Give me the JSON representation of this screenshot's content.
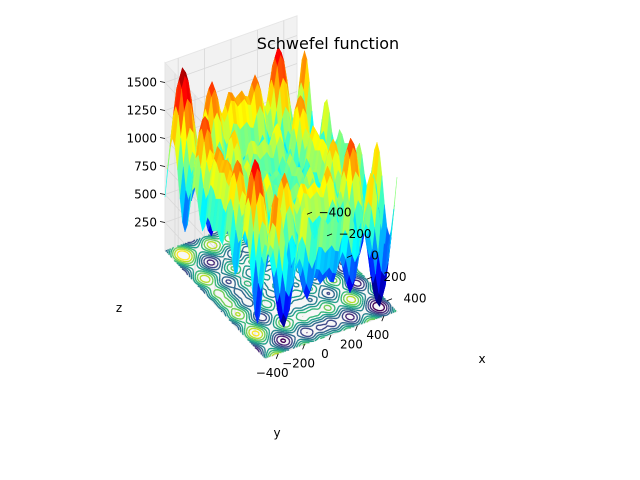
{
  "chart_data": {
    "type": "surface3d",
    "title": "Schwefel function",
    "function": "z = 418.9829*2 - x*sin(sqrt(|x|)) - y*sin(sqrt(|y|))",
    "colormap": "jet",
    "contour_projection": "bottom",
    "grid": true,
    "xlabel": "x",
    "ylabel": "y",
    "zlabel": "z",
    "xlim": [
      -500,
      500
    ],
    "ylim": [
      -500,
      500
    ],
    "zlim": [
      0,
      1676
    ],
    "x_ticks": [
      "−400",
      "−200",
      "0",
      "200",
      "400"
    ],
    "x_tick_values": [
      -400,
      -200,
      0,
      200,
      400
    ],
    "y_ticks": [
      "−400",
      "−200",
      "0",
      "200",
      "400"
    ],
    "y_tick_values": [
      -400,
      -200,
      0,
      200,
      400
    ],
    "z_ticks": [
      "250",
      "500",
      "750",
      "1000",
      "1250",
      "1500"
    ],
    "z_tick_values": [
      250,
      500,
      750,
      1000,
      1250,
      1500
    ],
    "surface_grid_n": 40,
    "contour_levels": [
      150,
      300,
      450,
      600,
      750,
      900,
      1050,
      1200,
      1350,
      1500
    ],
    "contour_colors": [
      "#440154",
      "#482878",
      "#3e4989",
      "#31688e",
      "#26828e",
      "#1f9e89",
      "#35b779",
      "#6ece58",
      "#b5de2b",
      "#fde725"
    ]
  }
}
